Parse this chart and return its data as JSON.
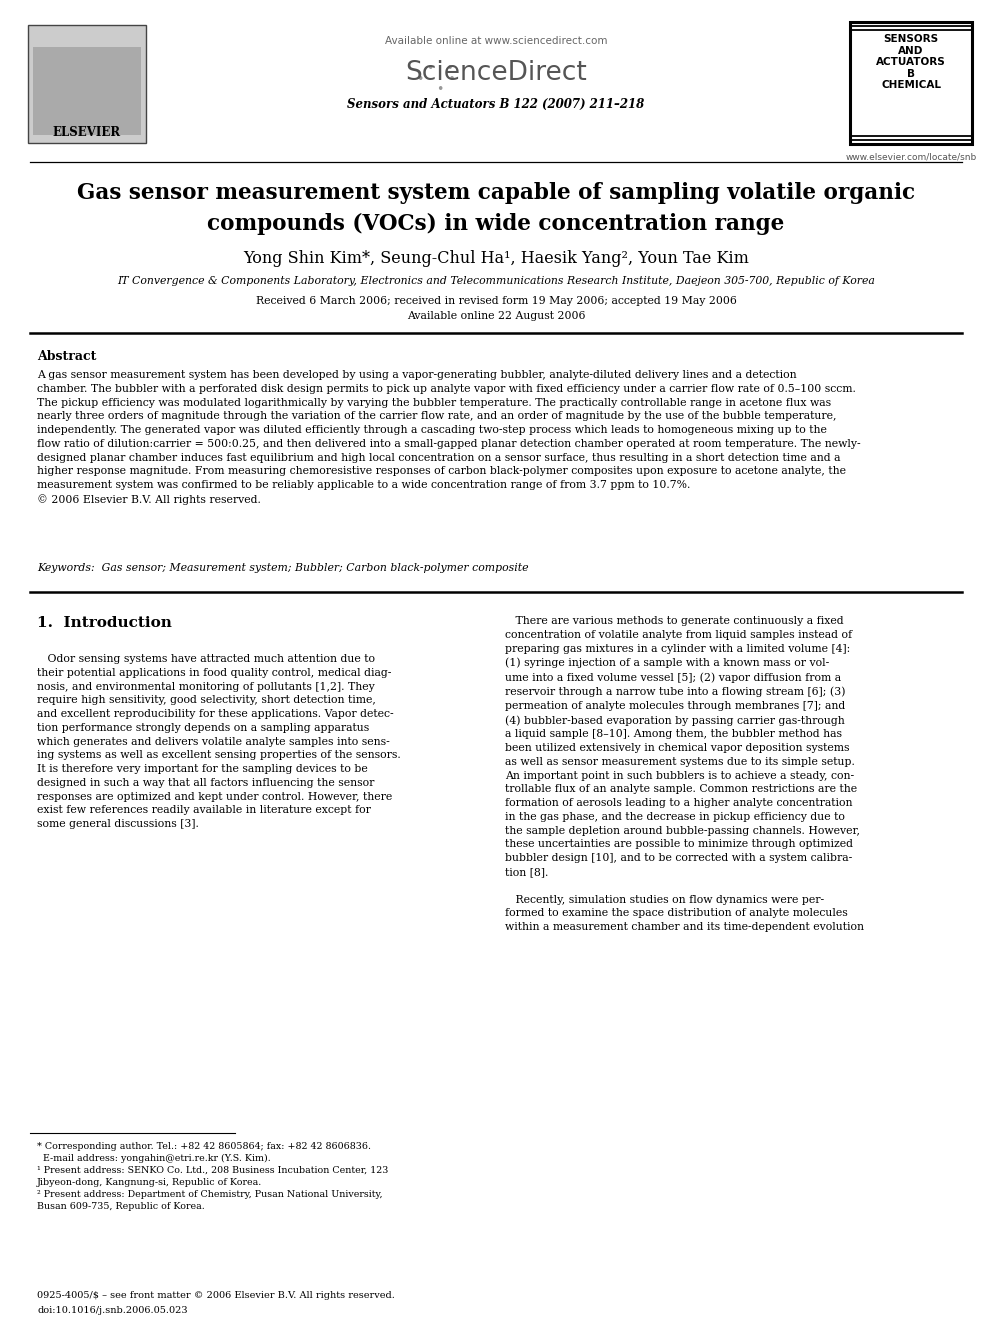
{
  "bg_color": "#ffffff",
  "available_online": "Available online at www.sciencedirect.com",
  "journal_line": "Sensors and Actuators B 122 (2007) 211–218",
  "elsevier_label": "ELSEVIER",
  "journal_box_text": "SENSORS\nAND\nACTUATORS\nB\nCHEMICAL",
  "website": "www.elsevier.com/locate/snb",
  "title": "Gas sensor measurement system capable of sampling volatile organic\ncompounds (VOCs) in wide concentration range",
  "authors": "Yong Shin Kim*, Seung-Chul Ha¹, Haesik Yang², Youn Tae Kim",
  "affiliation": "IT Convergence & Components Laboratory, Electronics and Telecommunications Research Institute, Daejeon 305-700, Republic of Korea",
  "dates": "Received 6 March 2006; received in revised form 19 May 2006; accepted 19 May 2006",
  "available": "Available online 22 August 2006",
  "abstract_title": "Abstract",
  "abstract_text": "A gas sensor measurement system has been developed by using a vapor-generating bubbler, analyte-diluted delivery lines and a detection\nchamber. The bubbler with a perforated disk design permits to pick up analyte vapor with fixed efficiency under a carrier flow rate of 0.5–100 sccm.\nThe pickup efficiency was modulated logarithmically by varying the bubbler temperature. The practically controllable range in acetone flux was\nnearly three orders of magnitude through the variation of the carrier flow rate, and an order of magnitude by the use of the bubble temperature,\nindependently. The generated vapor was diluted efficiently through a cascading two-step process which leads to homogeneous mixing up to the\nflow ratio of dilution:carrier = 500:0.25, and then delivered into a small-gapped planar detection chamber operated at room temperature. The newly-\ndesigned planar chamber induces fast equilibrium and high local concentration on a sensor surface, thus resulting in a short detection time and a\nhigher response magnitude. From measuring chemoresistive responses of carbon black-polymer composites upon exposure to acetone analyte, the\nmeasurement system was confirmed to be reliably applicable to a wide concentration range of from 3.7 ppm to 10.7%.\n© 2006 Elsevier B.V. All rights reserved.",
  "keywords": "Keywords:  Gas sensor; Measurement system; Bubbler; Carbon black-polymer composite",
  "section1_title": "1.  Introduction",
  "intro_left": "   Odor sensing systems have attracted much attention due to\ntheir potential applications in food quality control, medical diag-\nnosis, and environmental monitoring of pollutants [1,2]. They\nrequire high sensitivity, good selectivity, short detection time,\nand excellent reproducibility for these applications. Vapor detec-\ntion performance strongly depends on a sampling apparatus\nwhich generates and delivers volatile analyte samples into sens-\ning systems as well as excellent sensing properties of the sensors.\nIt is therefore very important for the sampling devices to be\ndesigned in such a way that all factors influencing the sensor\nresponses are optimized and kept under control. However, there\nexist few references readily available in literature except for\nsome general discussions [3].",
  "intro_right": "   There are various methods to generate continuously a fixed\nconcentration of volatile analyte from liquid samples instead of\npreparing gas mixtures in a cylinder with a limited volume [4]:\n(1) syringe injection of a sample with a known mass or vol-\nume into a fixed volume vessel [5]; (2) vapor diffusion from a\nreservoir through a narrow tube into a flowing stream [6]; (3)\npermeation of analyte molecules through membranes [7]; and\n(4) bubbler-based evaporation by passing carrier gas-through\na liquid sample [8–10]. Among them, the bubbler method has\nbeen utilized extensively in chemical vapor deposition systems\nas well as sensor measurement systems due to its simple setup.\nAn important point in such bubblers is to achieve a steady, con-\ntrollable flux of an analyte sample. Common restrictions are the\nformation of aerosols leading to a higher analyte concentration\nin the gas phase, and the decrease in pickup efficiency due to\nthe sample depletion around bubble-passing channels. However,\nthese uncertainties are possible to minimize through optimized\nbubbler design [10], and to be corrected with a system calibra-\ntion [8].\n\n   Recently, simulation studies on flow dynamics were per-\nformed to examine the space distribution of analyte molecules\nwithin a measurement chamber and its time-dependent evolution",
  "footnote_line": "* Corresponding author. Tel.: +82 42 8605864; fax: +82 42 8606836.\n  E-mail address: yongahin@etri.re.kr (Y.S. Kim).\n¹ Present address: SENKO Co. Ltd., 208 Business Incubation Center, 123\nJibyeon-dong, Kangnung-si, Republic of Korea.\n² Present address: Department of Chemistry, Pusan National University,\nBusan 609-735, Republic of Korea.",
  "bottom1": "0925-4005/$ – see front matter © 2006 Elsevier B.V. All rights reserved.",
  "bottom2": "doi:10.1016/j.snb.2006.05.023"
}
